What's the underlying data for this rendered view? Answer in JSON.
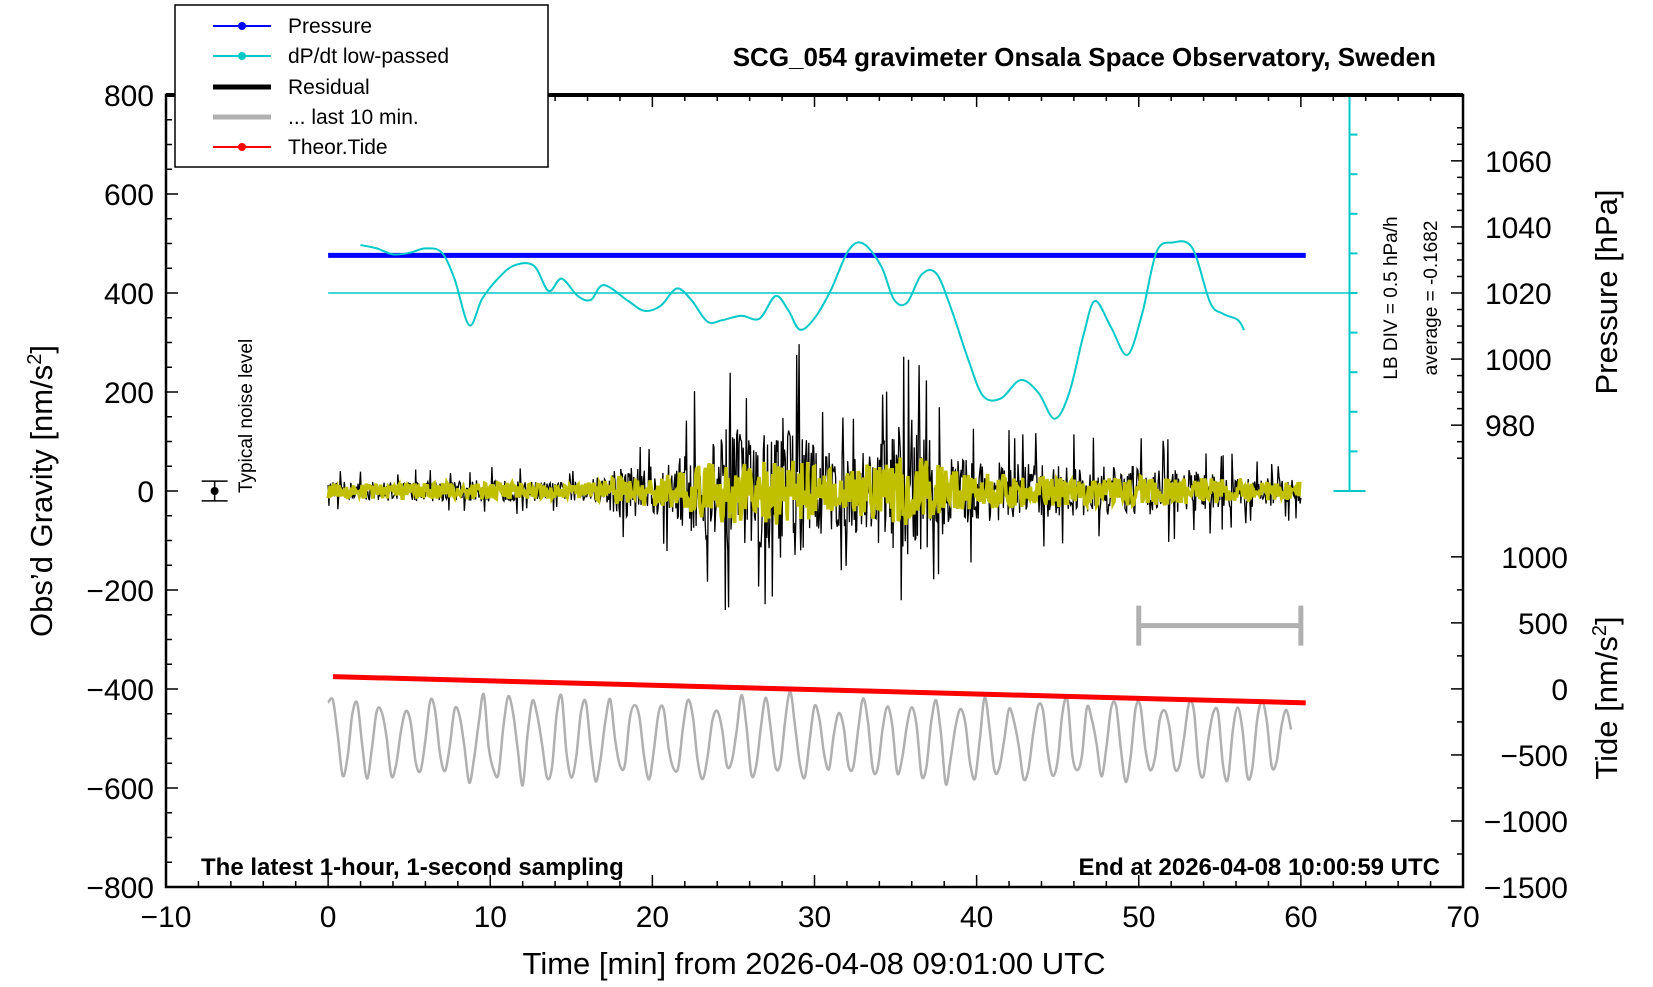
{
  "chart_data": {
    "type": "line",
    "title": "SCG_054 gravimeter Onsala Space Observatory, Sweden",
    "xlabel": "Time [min] from 2026-04-08 09:01:00 UTC",
    "ylabel_left_prefix": "Obs’d Gravity [nm/s",
    "ylabel_left_sup": "2",
    "ylabel_left_suffix": "]",
    "ylabel_pressure": "Pressure [hPa]",
    "ylabel_tide_prefix": "Tide [nm/s",
    "ylabel_tide_sup": "2",
    "ylabel_tide_suffix": "]",
    "xlim": [
      -10,
      70
    ],
    "ylim_left": [
      -800,
      800
    ],
    "x_ticks": [
      -10,
      0,
      10,
      20,
      30,
      40,
      50,
      60,
      70
    ],
    "x_tick_labels": [
      "−10",
      "0",
      "10",
      "20",
      "30",
      "40",
      "50",
      "60",
      "70"
    ],
    "y_left_ticks": [
      800,
      600,
      400,
      200,
      0,
      -200,
      -400,
      -600,
      -800
    ],
    "y_left_tick_labels": [
      "800",
      "600",
      "400",
      "200",
      "0",
      "−200",
      "−400",
      "−600",
      "−800"
    ],
    "pressure_ticks": [
      1060,
      1040,
      1020,
      1000,
      980
    ],
    "pressure_tick_labels": [
      "1060",
      "1040",
      "1020",
      "1000",
      "980"
    ],
    "pressure_axis_ref": {
      "hpa": [
        1060,
        980
      ],
      "gravity": [
        667,
        133
      ]
    },
    "tide_ticks": [
      1000,
      500,
      0,
      -500,
      -1000,
      -1500
    ],
    "tide_tick_labels": [
      "1000",
      "500",
      "0",
      "−500",
      "−1000",
      "−1500"
    ],
    "tide_axis_ref": {
      "tide": [
        1000,
        -1500
      ],
      "gravity": [
        -133,
        -800
      ]
    },
    "annotations": {
      "bottom_left": "The latest 1-hour, 1-second sampling",
      "bottom_right": "End at 2026-04-08 10:00:59 UTC",
      "noise_label": "Typical noise level",
      "lb_div": "LB DIV = 0.5 hPa/h",
      "average": "average = -0.1682"
    },
    "noise_bar": {
      "x": -7,
      "y": 0,
      "half_range": 20
    },
    "ref_bar": {
      "x_start": 50,
      "x_end": 60,
      "y": -272
    },
    "ldiv_scale": {
      "x": 63,
      "y_bottom": 0,
      "y_top": 800,
      "ticks": 10
    },
    "series": [
      {
        "name": "Pressure",
        "color": "#0000ff",
        "x": [
          0,
          60.3
        ],
        "y": [
          476,
          476
        ]
      },
      {
        "name": "dP/dt low-passed",
        "color": "#00c8c8",
        "baseline": 400,
        "x": [
          2,
          3,
          4,
          5,
          6,
          7,
          7.8,
          8.7,
          9.5,
          10.5,
          11.5,
          12.7,
          13.6,
          14.4,
          15.4,
          16.2,
          17,
          18.5,
          19.5,
          20.5,
          21.5,
          22.4,
          23.4,
          24.3,
          25.5,
          26.6,
          27.6,
          28.4,
          29.1,
          30,
          31,
          32.1,
          33,
          34.1,
          34.9,
          35.7,
          36.6,
          37.5,
          38.4,
          39.5,
          40.4,
          41.5,
          42.7,
          43.8,
          44.8,
          45.7,
          46.6,
          47.3,
          48.3,
          49.3,
          50.2,
          51.1,
          52.1,
          53.3,
          54.4,
          55.2,
          56.1,
          56.5
        ],
        "y": [
          497,
          490,
          478,
          481,
          490,
          482,
          428,
          335,
          388,
          430,
          456,
          455,
          404,
          429,
          394,
          386,
          416,
          384,
          364,
          374,
          409,
          386,
          342,
          345,
          354,
          348,
          394,
          364,
          326,
          349,
          405,
          486,
          500,
          455,
          387,
          380,
          437,
          440,
          371,
          264,
          192,
          187,
          224,
          199,
          146,
          197,
          316,
          384,
          330,
          275,
          357,
          483,
          502,
          491,
          381,
          358,
          346,
          325
        ]
      },
      {
        "name": "Residual",
        "color": "#000000"
      },
      {
        "name": "... last 10 min.",
        "color": "#c0c000"
      },
      {
        "name": "Theor.Tide",
        "color": "#ff0000",
        "x": [
          0.3,
          60.3
        ],
        "y": [
          -375,
          -428
        ]
      },
      {
        "name": "grey-trace",
        "color": "#b0b0b0"
      }
    ],
    "residual_envelope": {
      "x": [
        0,
        5,
        10,
        15,
        16.5,
        18,
        20,
        21.5,
        22.5,
        24,
        25,
        26,
        27.5,
        28.5,
        30,
        32,
        34,
        35,
        36,
        37,
        38.5,
        40,
        44,
        48,
        52,
        56,
        60
      ],
      "amp": [
        40,
        45,
        50,
        40,
        60,
        120,
        110,
        140,
        200,
        250,
        300,
        230,
        280,
        370,
        200,
        180,
        240,
        280,
        320,
        250,
        160,
        140,
        120,
        110,
        110,
        75,
        60
      ]
    },
    "grey_trace_baseline": -500,
    "legend": {
      "entries": [
        "Pressure",
        "dP/dt low-passed",
        "Residual",
        "... last 10 min.",
        "Theor.Tide"
      ],
      "position": "top-left"
    }
  }
}
